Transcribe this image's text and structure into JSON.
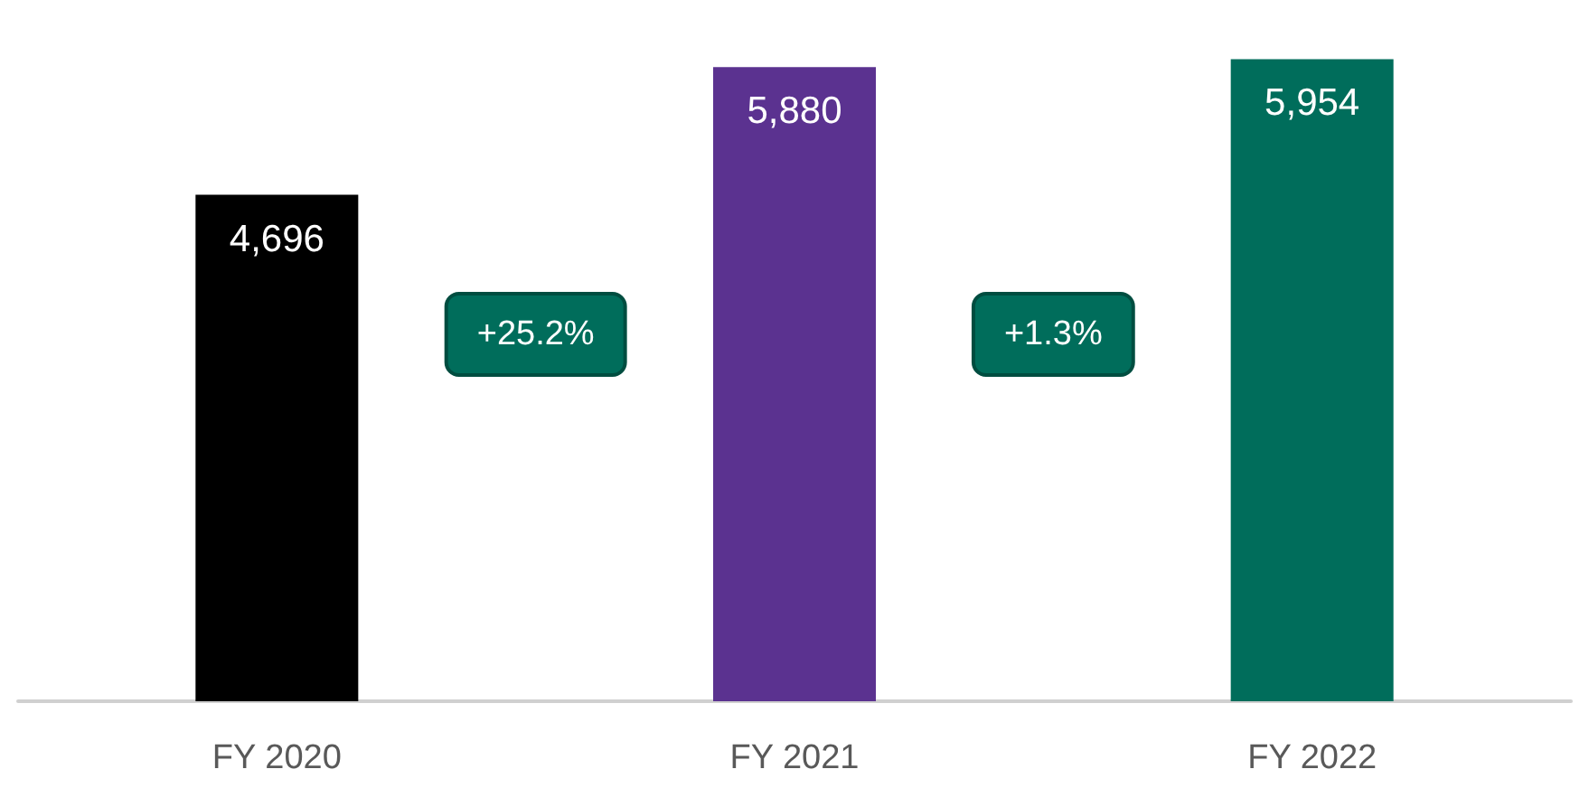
{
  "chart_data": {
    "type": "bar",
    "categories": [
      "FY 2020",
      "FY 2021",
      "FY 2022"
    ],
    "values": [
      4696,
      5880,
      5954
    ],
    "colors": [
      "#000000",
      "#5b3290",
      "#006d5b"
    ],
    "value_labels": [
      "4,696",
      "5,880",
      "5,954"
    ],
    "annotations": [
      "+25.2%",
      "+1.3%"
    ]
  }
}
